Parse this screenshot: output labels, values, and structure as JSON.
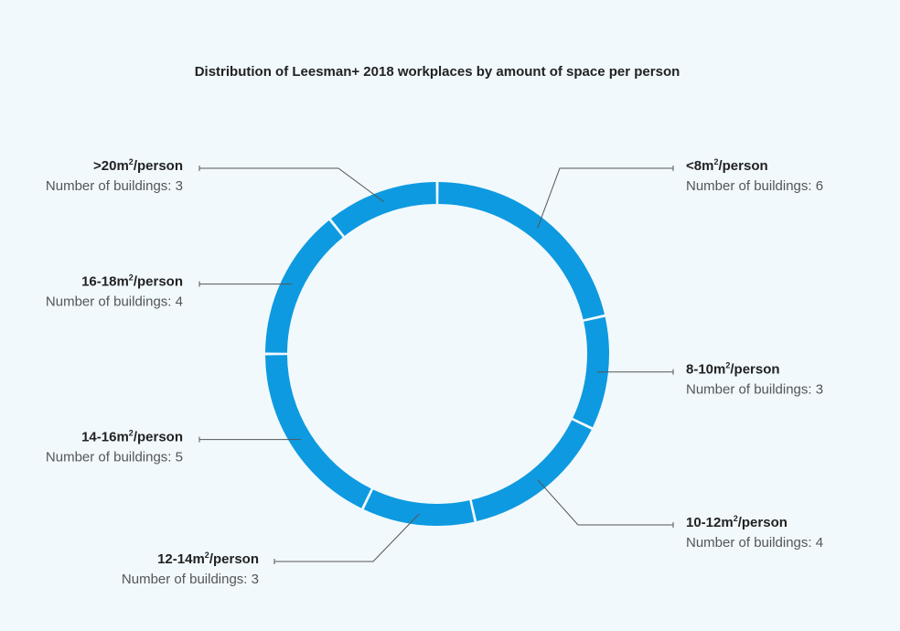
{
  "chart_data": {
    "type": "pie",
    "variant": "donut",
    "title": "Distribution of Leesman+ 2018 workplaces by amount of space per person",
    "count_prefix": "Number of buildings: ",
    "segment_color": "#0d9ae0",
    "segments": [
      {
        "label": "<8m²/person",
        "base": "<8m",
        "unit": "/person",
        "value": 6
      },
      {
        "label": "8-10m²/person",
        "base": "8-10m",
        "unit": "/person",
        "value": 3
      },
      {
        "label": "10-12m²/person",
        "base": "10-12m",
        "unit": "/person",
        "value": 4
      },
      {
        "label": "12-14m²/person",
        "base": "12-14m",
        "unit": "/person",
        "value": 3
      },
      {
        "label": "14-16m²/person",
        "base": "14-16m",
        "unit": "/person",
        "value": 5
      },
      {
        "label": "16-18m²/person",
        "base": "16-18m",
        "unit": "/person",
        "value": 4
      },
      {
        "label": ">20m²/person",
        "base": ">20m",
        "unit": "/person",
        "value": 3
      }
    ]
  }
}
